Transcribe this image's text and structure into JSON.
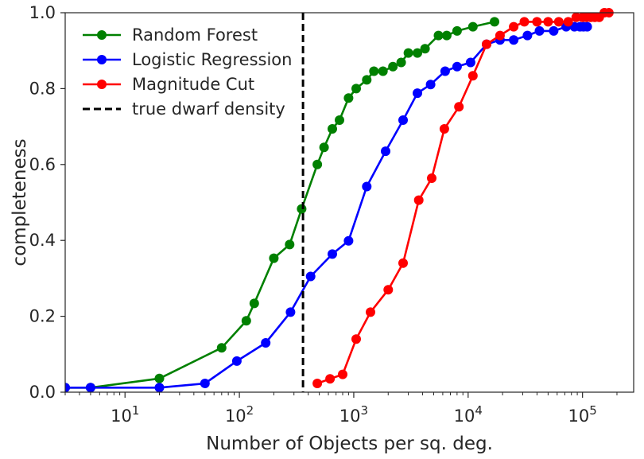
{
  "chart_data": {
    "type": "line",
    "xlabel": "Number of Objects per sq. deg.",
    "ylabel": "completeness",
    "x_scale": "log",
    "xlim": [
      3,
      280000
    ],
    "ylim": [
      0,
      1
    ],
    "x_ticks": [
      10,
      100,
      1000,
      10000,
      100000
    ],
    "y_ticks": [
      0.0,
      0.2,
      0.4,
      0.6,
      0.8,
      1.0
    ],
    "y_tick_labels": [
      "0.0",
      "0.2",
      "0.4",
      "0.6",
      "0.8",
      "1.0"
    ],
    "grid": false,
    "legend_position": "top-left",
    "reference_line": {
      "name": "true dwarf density",
      "x": 360,
      "color": "#000000",
      "style": "dashed"
    },
    "series": [
      {
        "name": "Random Forest",
        "color": "#008000",
        "x": [
          3,
          5,
          20,
          70,
          115,
          135,
          200,
          275,
          350,
          480,
          550,
          650,
          750,
          900,
          1050,
          1300,
          1500,
          1800,
          2200,
          2600,
          3000,
          3600,
          4200,
          5500,
          6500,
          8000,
          11000,
          17000
        ],
        "y": [
          0.012,
          0.012,
          0.036,
          0.117,
          0.188,
          0.234,
          0.353,
          0.389,
          0.483,
          0.6,
          0.645,
          0.694,
          0.717,
          0.775,
          0.8,
          0.823,
          0.846,
          0.846,
          0.858,
          0.869,
          0.894,
          0.894,
          0.905,
          0.94,
          0.94,
          0.952,
          0.963,
          0.976
        ]
      },
      {
        "name": "Logistic Regression",
        "color": "#0000ff",
        "x": [
          3,
          5,
          20,
          50,
          95,
          170,
          280,
          420,
          650,
          900,
          1300,
          1900,
          2700,
          3600,
          4700,
          6300,
          8000,
          10500,
          14500,
          19000,
          25000,
          33000,
          42000,
          56000,
          72000,
          85000,
          95000,
          102000,
          110000
        ],
        "y": [
          0.012,
          0.012,
          0.012,
          0.023,
          0.082,
          0.13,
          0.211,
          0.305,
          0.364,
          0.399,
          0.542,
          0.635,
          0.717,
          0.788,
          0.811,
          0.846,
          0.858,
          0.869,
          0.917,
          0.928,
          0.928,
          0.94,
          0.952,
          0.952,
          0.963,
          0.963,
          0.963,
          0.963,
          0.963
        ]
      },
      {
        "name": "Magnitude Cut",
        "color": "#ff0000",
        "x": [
          480,
          620,
          800,
          1050,
          1400,
          2000,
          2700,
          3700,
          4800,
          6200,
          8300,
          11000,
          14500,
          19000,
          25000,
          31000,
          40000,
          50000,
          62000,
          75000,
          88000,
          100000,
          108000,
          118000,
          128000,
          140000,
          155000,
          170000
        ],
        "y": [
          0.023,
          0.035,
          0.047,
          0.14,
          0.211,
          0.27,
          0.34,
          0.506,
          0.564,
          0.694,
          0.752,
          0.834,
          0.917,
          0.94,
          0.963,
          0.976,
          0.976,
          0.976,
          0.976,
          0.976,
          0.988,
          0.988,
          0.988,
          0.988,
          0.988,
          0.988,
          1.0,
          1.0
        ]
      }
    ]
  }
}
